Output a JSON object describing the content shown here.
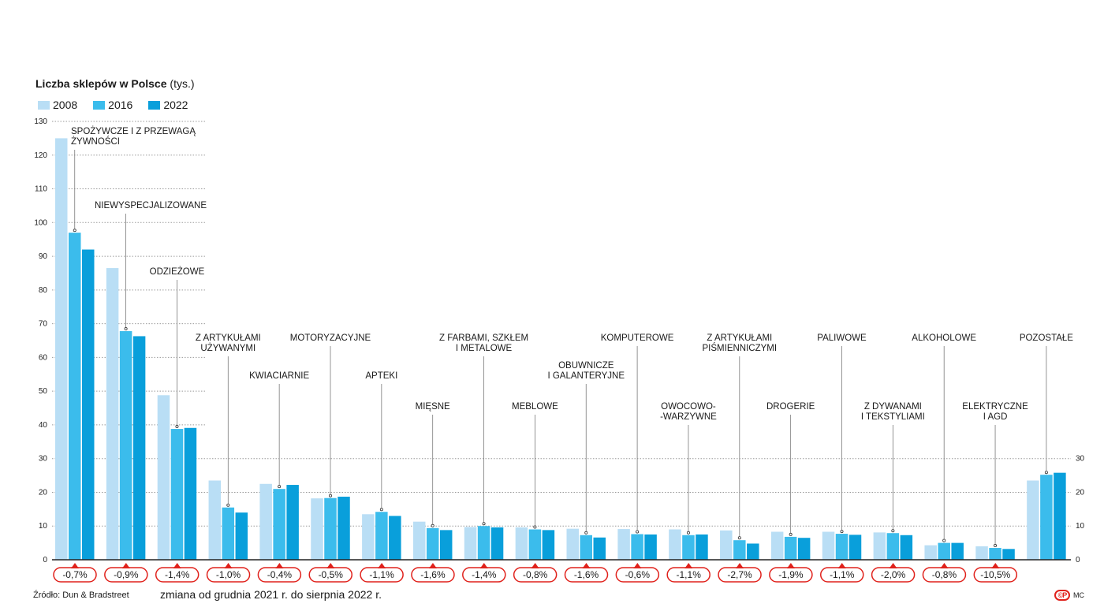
{
  "header": {
    "title_bold": "Liczba sklepów w Polsce",
    "title_unit": "(tys.)"
  },
  "footer": {
    "source": "Źródło: Dun & Bradstreet",
    "caption": "zmiana od grudnia 2021 r. do sierpnia 2022 r.",
    "logo": "©P",
    "author": "MC"
  },
  "colors": {
    "s2008": "#b9def5",
    "s2016": "#3bbcec",
    "s2022": "#099fdb",
    "badge": "#e0211b",
    "grid": "#9a9a9a"
  },
  "chart_data": {
    "type": "bar",
    "title": "Liczba sklepów w Polsce (tys.)",
    "ylim": [
      0,
      130
    ],
    "yticks": [
      0,
      10,
      20,
      30,
      40,
      50,
      60,
      70,
      80,
      90,
      100,
      110,
      120,
      130
    ],
    "right_axis_ticks": [
      0,
      10,
      20,
      30
    ],
    "series_names": [
      "2008",
      "2016",
      "2022"
    ],
    "categories": [
      {
        "label": "SPOŻYWCZE I Z PRZEWAGĄ ŻYWNOŚCI",
        "lines": [
          "SPOŻYWCZE I Z PRZEWAGĄ",
          "ŻYWNOŚCI"
        ],
        "values": [
          125,
          97,
          92
        ],
        "change": "-0,7%"
      },
      {
        "label": "NIEWYSPECJALIZOWANE",
        "lines": [
          "NIEWYSPECJALIZOWANE"
        ],
        "values": [
          86.5,
          67.8,
          66.3
        ],
        "change": "-0,9%"
      },
      {
        "label": "ODZIEŻOWE",
        "lines": [
          "ODZIEŻOWE"
        ],
        "values": [
          48.8,
          38.8,
          39.1
        ],
        "change": "-1,4%"
      },
      {
        "label": "Z ARTYKUŁAMI UŻYWANYMI",
        "lines": [
          "Z ARTYKUŁAMI",
          "UŻYWANYMI"
        ],
        "values": [
          23.5,
          15.5,
          14
        ],
        "change": "-1,0%"
      },
      {
        "label": "KWIACIARNIE",
        "lines": [
          "KWIACIARNIE"
        ],
        "values": [
          22.5,
          21,
          22.2
        ],
        "change": "-0,4%"
      },
      {
        "label": "MOTORYZACYJNE",
        "lines": [
          "MOTORYZACYJNE"
        ],
        "values": [
          18.2,
          18.3,
          18.7
        ],
        "change": "-0,5%"
      },
      {
        "label": "APTEKI",
        "lines": [
          "APTEKI"
        ],
        "values": [
          13.5,
          14.2,
          13
        ],
        "change": "-1,1%"
      },
      {
        "label": "MIĘSNE",
        "lines": [
          "MIĘSNE"
        ],
        "values": [
          11.3,
          9.4,
          8.8
        ],
        "change": "-1,6%"
      },
      {
        "label": "Z FARBAMI, SZKŁEM I METALOWE",
        "lines": [
          "Z FARBAMI, SZKŁEM",
          "I METALOWE"
        ],
        "values": [
          9.7,
          10,
          9.6
        ],
        "change": "-1,4%"
      },
      {
        "label": "MEBLOWE",
        "lines": [
          "MEBLOWE"
        ],
        "values": [
          9.6,
          9,
          8.8
        ],
        "change": "-0,8%"
      },
      {
        "label": "OBUWNICZE I GALANTERYJNE",
        "lines": [
          "OBUWNICZE",
          "I GALANTERYJNE"
        ],
        "values": [
          9.2,
          7.3,
          6.6
        ],
        "change": "-1,6%"
      },
      {
        "label": "KOMPUTEROWE",
        "lines": [
          "KOMPUTEROWE"
        ],
        "values": [
          9.1,
          7.6,
          7.5
        ],
        "change": "-0,6%"
      },
      {
        "label": "OWOCOWO-WARZYWNE",
        "lines": [
          "OWOCOWO-",
          "-WARZYWNE"
        ],
        "values": [
          9,
          7.3,
          7.5
        ],
        "change": "-1,1%"
      },
      {
        "label": "Z ARTYKUŁAMI PIŚMIENNICZYMI",
        "lines": [
          "Z ARTYKUŁAMI",
          "PIŚMIENNICZYMI"
        ],
        "values": [
          8.7,
          5.8,
          4.8
        ],
        "change": "-2,7%"
      },
      {
        "label": "DROGERIE",
        "lines": [
          "DROGERIE"
        ],
        "values": [
          8.3,
          6.8,
          6.5
        ],
        "change": "-1,9%"
      },
      {
        "label": "PALIWOWE",
        "lines": [
          "PALIWOWE"
        ],
        "values": [
          8.3,
          7.7,
          7.4
        ],
        "change": "-1,1%"
      },
      {
        "label": "Z DYWANAMI I TEKSTYLIAMI",
        "lines": [
          "Z DYWANAMI",
          "I TEKSTYLIAMI"
        ],
        "values": [
          8.1,
          7.9,
          7.3
        ],
        "change": "-2,0%"
      },
      {
        "label": "ALKOHOLOWE",
        "lines": [
          "ALKOHOLOWE"
        ],
        "values": [
          4.3,
          5,
          5
        ],
        "change": "-0,8%"
      },
      {
        "label": "ELEKTRYCZNE I AGD",
        "lines": [
          "ELEKTRYCZNE",
          "I AGD"
        ],
        "values": [
          4,
          3.5,
          3.2
        ],
        "change": "-10,5%"
      },
      {
        "label": "POZOSTAŁE",
        "lines": [
          "POZOSTAŁE"
        ],
        "values": [
          23.5,
          25.2,
          25.8
        ],
        "change": ""
      }
    ]
  }
}
